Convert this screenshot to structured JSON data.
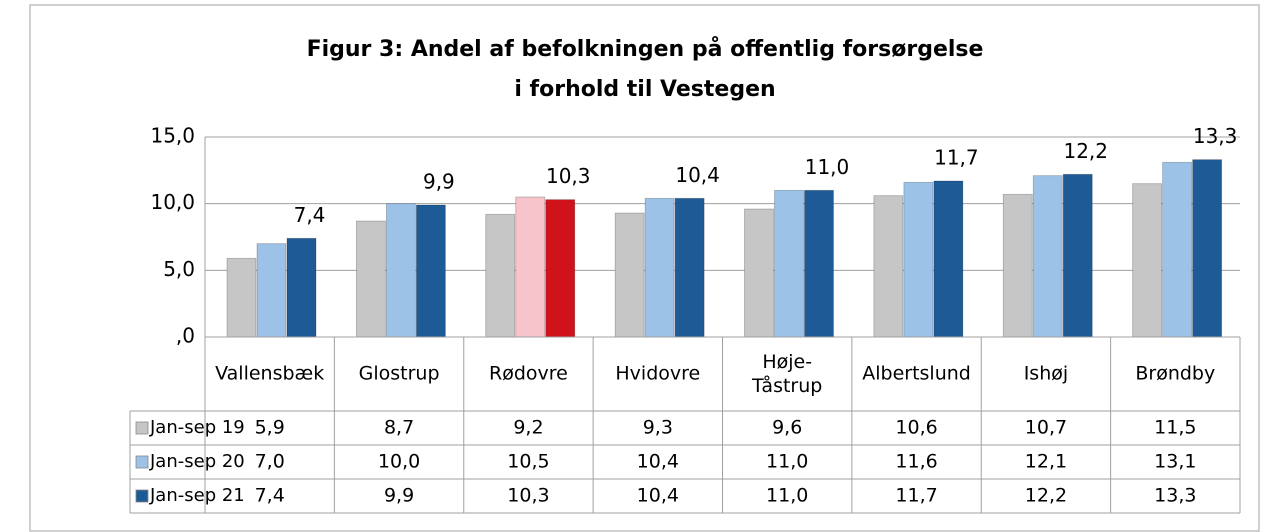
{
  "chart_data": {
    "type": "bar",
    "title": "Figur 3: Andel af befolkningen på offentlig forsørgelse",
    "subtitle": "i forhold til Vestegen",
    "categories": [
      "Vallensbæk",
      "Glostrup",
      "Rødovre",
      "Hvidovre",
      "Høje-Tåstrup",
      "Albertslund",
      "Ishøj",
      "Brøndby"
    ],
    "series": [
      {
        "name": "Jan-sep 19",
        "color": "#c6c6c6",
        "point_colors": [
          "#c6c6c6",
          "#c6c6c6",
          "#c6c6c6",
          "#c6c6c6",
          "#c6c6c6",
          "#c6c6c6",
          "#c6c6c6",
          "#c6c6c6"
        ],
        "values": [
          5.9,
          8.7,
          9.2,
          9.3,
          9.6,
          10.6,
          10.7,
          11.5
        ],
        "value_labels": [
          "5,9",
          "8,7",
          "9,2",
          "9,3",
          "9,6",
          "10,6",
          "10,7",
          "11,5"
        ]
      },
      {
        "name": "Jan-sep 20",
        "color": "#9cc2e8",
        "point_colors": [
          "#9cc2e8",
          "#9cc2e8",
          "#f6c4ca",
          "#9cc2e8",
          "#9cc2e8",
          "#9cc2e8",
          "#9cc2e8",
          "#9cc2e8"
        ],
        "values": [
          7.0,
          10.0,
          10.5,
          10.4,
          11.0,
          11.6,
          12.1,
          13.1
        ],
        "value_labels": [
          "7,0",
          "10,0",
          "10,5",
          "10,4",
          "11,0",
          "11,6",
          "12,1",
          "13,1"
        ]
      },
      {
        "name": "Jan-sep 21",
        "color": "#1d5a96",
        "point_colors": [
          "#1d5a96",
          "#1d5a96",
          "#d0121b",
          "#1d5a96",
          "#1d5a96",
          "#1d5a96",
          "#1d5a96",
          "#1d5a96"
        ],
        "values": [
          7.4,
          9.9,
          10.3,
          10.4,
          11.0,
          11.7,
          12.2,
          13.3
        ],
        "value_labels": [
          "7,4",
          "9,9",
          "10,3",
          "10,4",
          "11,0",
          "11,7",
          "12,2",
          "13,3"
        ]
      }
    ],
    "ylim": [
      0,
      15
    ],
    "yticks": [
      {
        "value": 0,
        "label": ",0"
      },
      {
        "value": 5,
        "label": "5,0"
      },
      {
        "value": 10,
        "label": "10,0"
      },
      {
        "value": 15,
        "label": "15,0"
      }
    ],
    "grid": true
  }
}
